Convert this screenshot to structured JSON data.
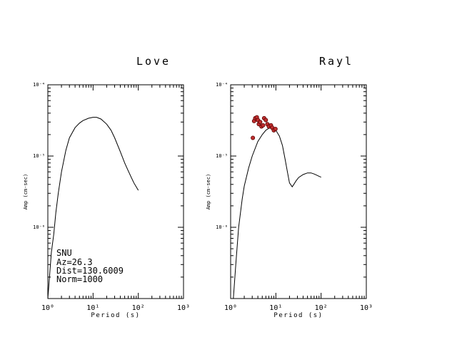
{
  "chart_data": [
    {
      "type": "line",
      "title": "Love",
      "xlabel": "Period (s)",
      "ylabel": "Amp (cm-sec)",
      "xscale": "log",
      "yscale": "log",
      "xlim": [
        1,
        1000
      ],
      "ylim": [
        1e-07,
        0.0001
      ],
      "x_tick_labels": [
        "10⁰",
        "10¹",
        "10²",
        "10³"
      ],
      "y_tick_labels": [
        "10⁻⁴",
        "10⁻⁵",
        "10⁻⁶"
      ],
      "series": [
        {
          "x": [
            1.0,
            1.1,
            1.2,
            1.35,
            1.5,
            1.7,
            2.0,
            2.5,
            3.0,
            4.0,
            5.0,
            6.0,
            8.0,
            10.0,
            12.0,
            15.0,
            20.0,
            25.0,
            30.0,
            40.0,
            50.0,
            60.0,
            70.0,
            80.0,
            90.0,
            100.0
          ],
          "y": [
            1e-07,
            2.2e-07,
            4.5e-07,
            8e-07,
            1.6e-06,
            3e-06,
            6e-06,
            1.2e-05,
            1.8e-05,
            2.5e-05,
            2.9e-05,
            3.15e-05,
            3.4e-05,
            3.5e-05,
            3.5e-05,
            3.3e-05,
            2.8e-05,
            2.3e-05,
            1.8e-05,
            1.15e-05,
            8e-06,
            6.2e-06,
            5e-06,
            4.2e-06,
            3.7e-06,
            3.3e-06
          ]
        }
      ],
      "annotations": [
        "SNU",
        "Az=26.3",
        "Dist=130.6009",
        "Norm=1000"
      ]
    },
    {
      "type": "line",
      "title": "Rayl",
      "xlabel": "Period (s)",
      "ylabel": "Amp (cm-sec)",
      "xscale": "log",
      "yscale": "log",
      "xlim": [
        1,
        1000
      ],
      "ylim": [
        1e-07,
        0.0001
      ],
      "x_tick_labels": [
        "10⁰",
        "10¹",
        "10²",
        "10³"
      ],
      "y_tick_labels": [
        "10⁻⁴",
        "10⁻⁵",
        "10⁻⁶"
      ],
      "series": [
        {
          "x": [
            1.15,
            1.3,
            1.5,
            1.8,
            2.0,
            2.5,
            3.0,
            4.0,
            5.0,
            6.0,
            7.0,
            8.0,
            9.0,
            10.0,
            12.0,
            14.0,
            16.0,
            18.0,
            20.0,
            23.0,
            25.0,
            28.0,
            32.0,
            40.0,
            50.0,
            60.0,
            70.0,
            80.0,
            90.0,
            100.0
          ],
          "y": [
            1e-07,
            3e-07,
            1e-06,
            2.5e-06,
            3.8e-06,
            6.8e-06,
            1e-05,
            1.6e-05,
            2e-05,
            2.3e-05,
            2.45e-05,
            2.5e-05,
            2.45e-05,
            2.3e-05,
            1.9e-05,
            1.4e-05,
            9e-06,
            6e-06,
            4.2e-06,
            3.7e-06,
            4e-06,
            4.5e-06,
            5e-06,
            5.5e-06,
            5.8e-06,
            5.8e-06,
            5.6e-06,
            5.4e-06,
            5.2e-06,
            5.05e-06
          ]
        },
        {
          "points": [
            {
              "x": 3.1,
              "y": 1.8e-05
            },
            {
              "x": 3.3,
              "y": 3.1e-05
            },
            {
              "x": 3.5,
              "y": 3.4e-05
            },
            {
              "x": 3.8,
              "y": 3.5e-05
            },
            {
              "x": 4.0,
              "y": 3.2e-05
            },
            {
              "x": 4.2,
              "y": 2.8e-05
            },
            {
              "x": 4.5,
              "y": 3e-05
            },
            {
              "x": 4.8,
              "y": 2.6e-05
            },
            {
              "x": 5.2,
              "y": 2.7e-05
            },
            {
              "x": 5.5,
              "y": 3.4e-05
            },
            {
              "x": 6.0,
              "y": 3.2e-05
            },
            {
              "x": 6.5,
              "y": 2.8e-05
            },
            {
              "x": 7.0,
              "y": 2.6e-05
            },
            {
              "x": 7.8,
              "y": 2.7e-05
            },
            {
              "x": 8.3,
              "y": 2.5e-05
            },
            {
              "x": 9.0,
              "y": 2.3e-05
            },
            {
              "x": 9.8,
              "y": 2.4e-05
            }
          ]
        }
      ]
    }
  ],
  "colors": {
    "axes": "#000000",
    "points_fill": "#c03030",
    "points_stroke": "#5a0000"
  }
}
